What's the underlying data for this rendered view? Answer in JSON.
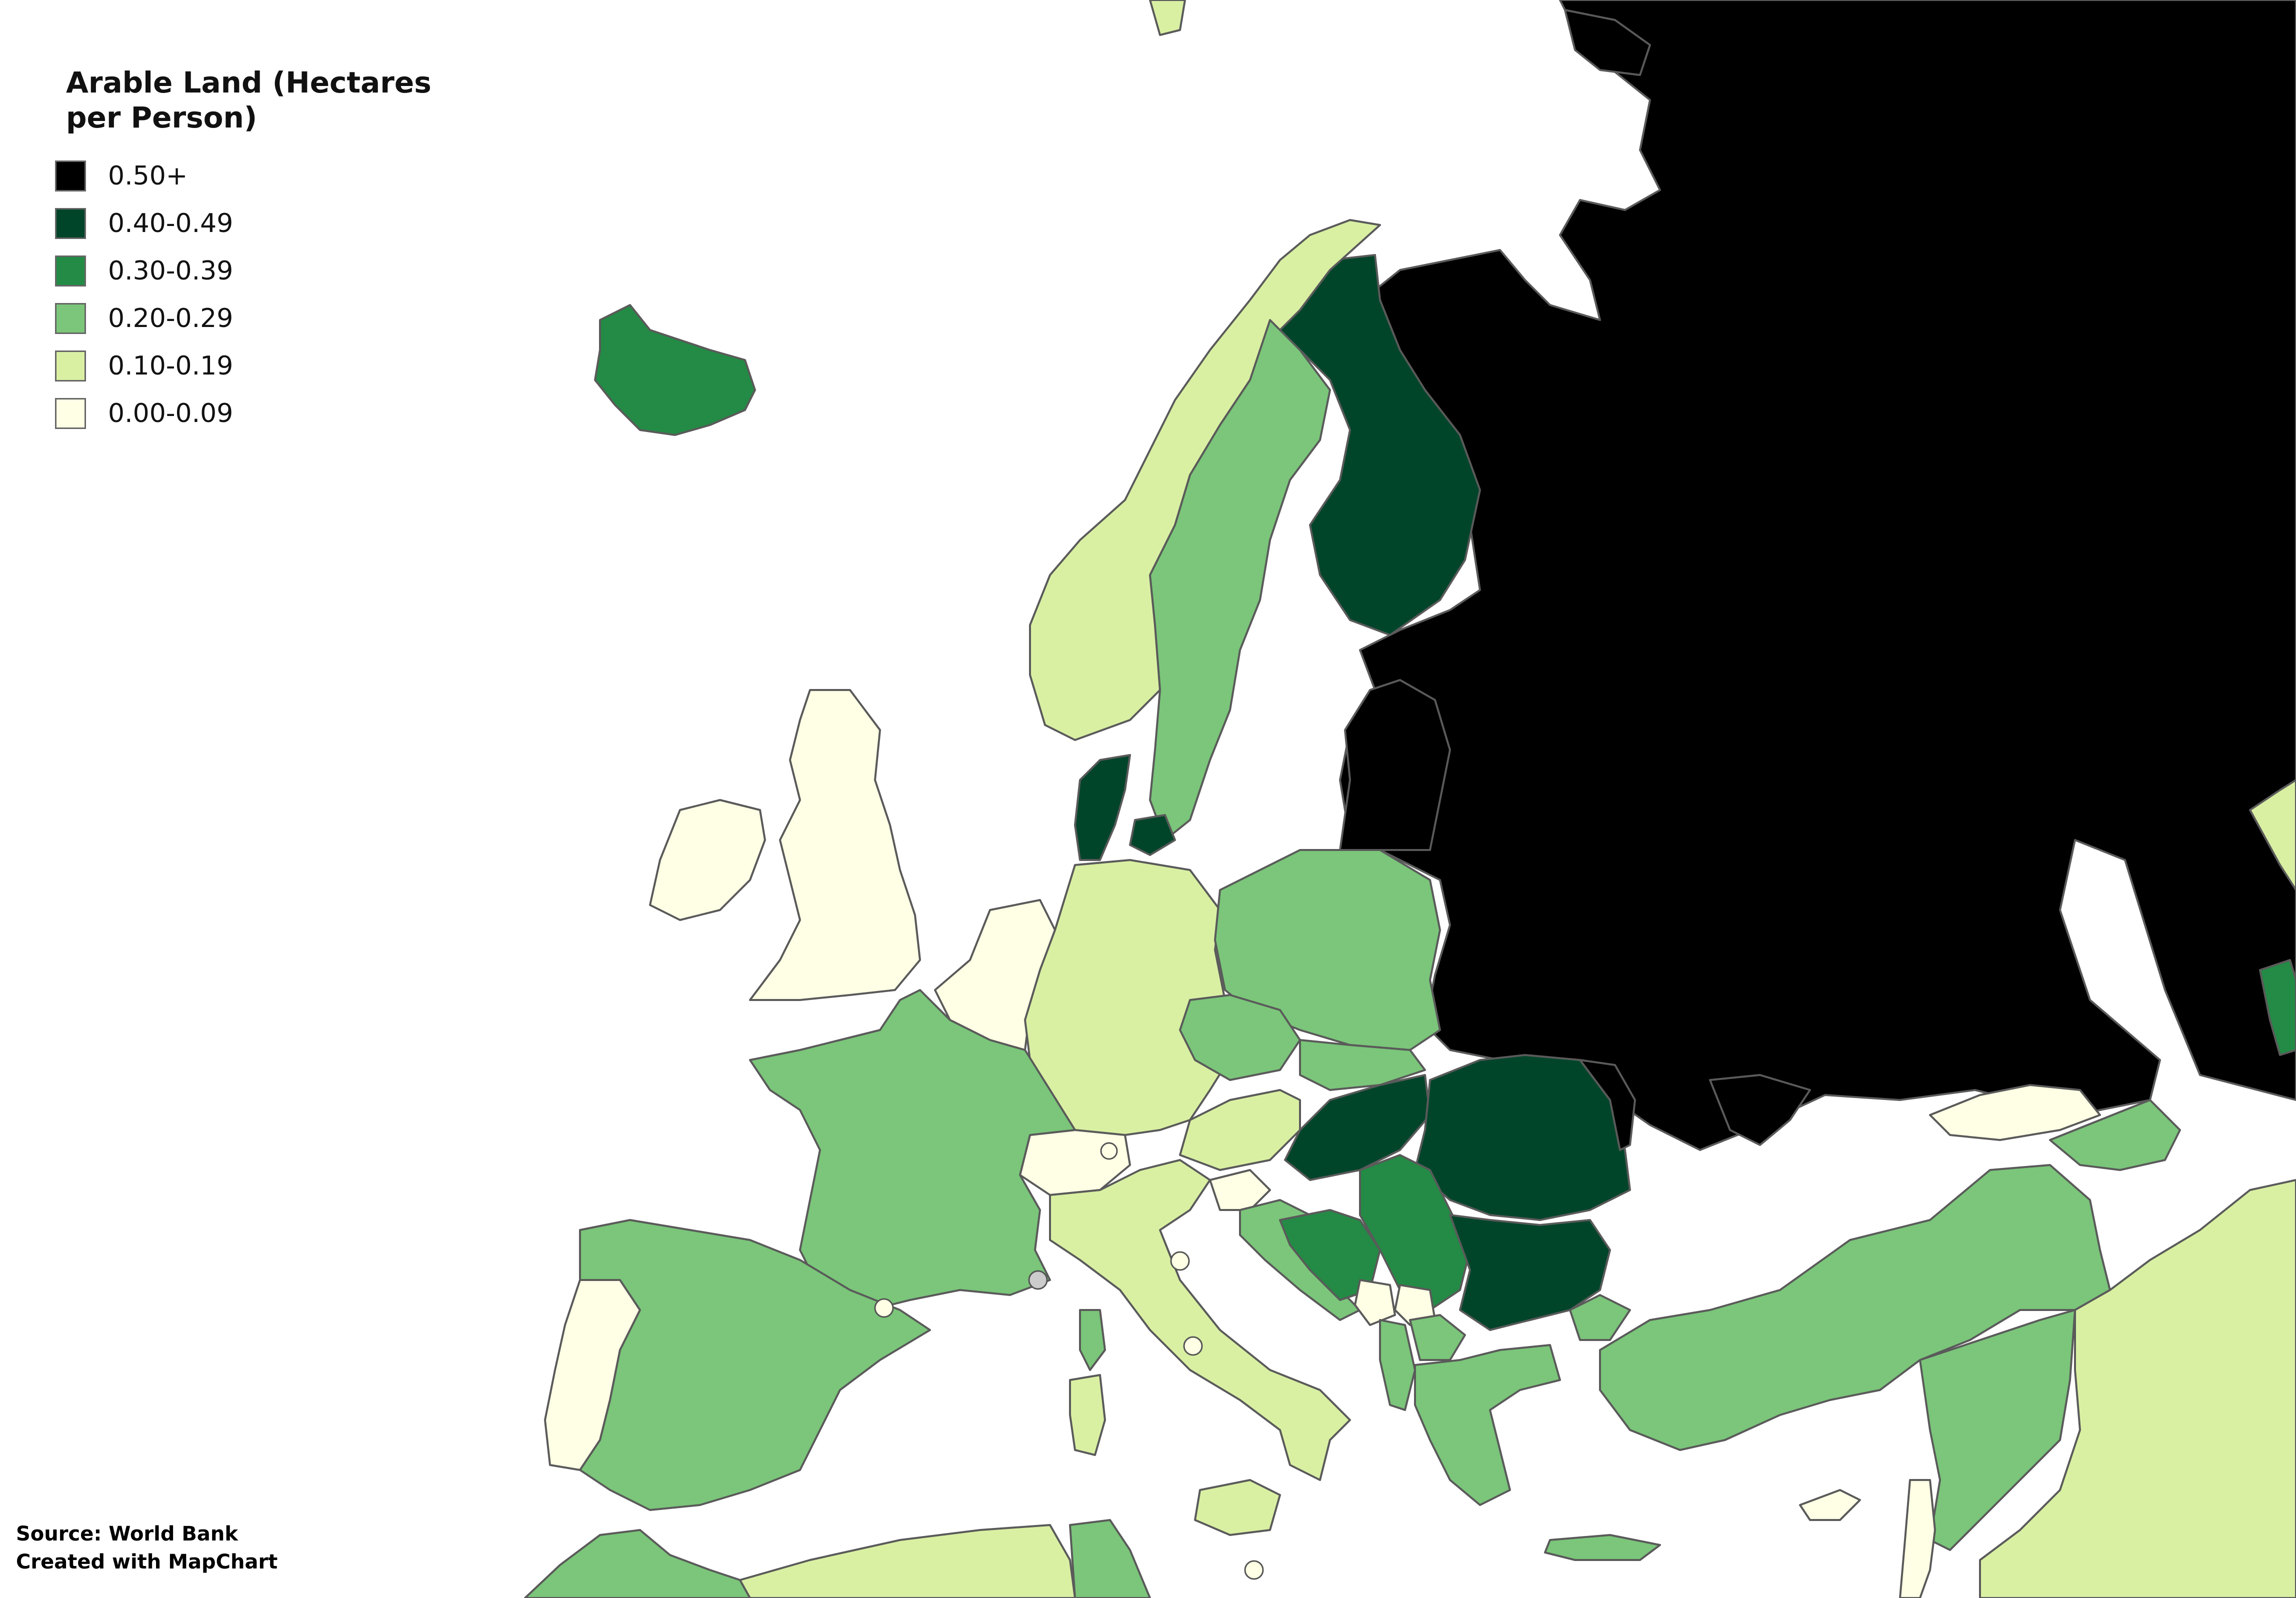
{
  "legend": {
    "title": "Arable Land (Hectares per Person)",
    "classes": [
      {
        "label": "0.50+",
        "color": "#000000"
      },
      {
        "label": "0.40-0.49",
        "color": "#00452a"
      },
      {
        "label": "0.30-0.39",
        "color": "#238b45"
      },
      {
        "label": "0.20-0.29",
        "color": "#7bc67a"
      },
      {
        "label": "0.10-0.19",
        "color": "#d9f0a3"
      },
      {
        "label": "0.00-0.09",
        "color": "#ffffe5"
      }
    ]
  },
  "source": {
    "line1": "Source: World Bank",
    "line2": "Created with MapChart"
  }
}
